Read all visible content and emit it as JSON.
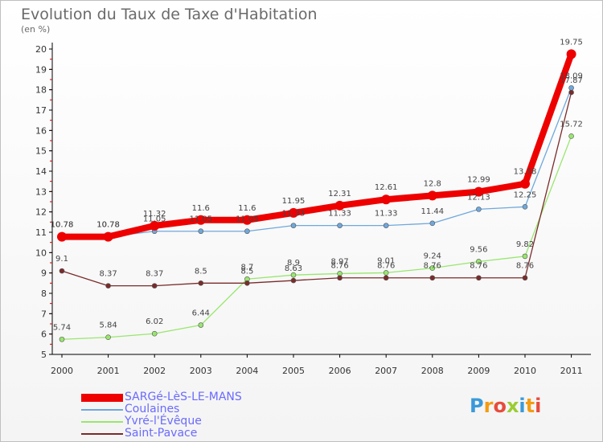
{
  "chart_data": {
    "type": "line",
    "title": "Evolution du Taux de Taxe d'Habitation",
    "subtitle": "(en %)",
    "xlabel": "",
    "ylabel": "",
    "categories": [
      "2000",
      "2001",
      "2002",
      "2003",
      "2004",
      "2005",
      "2006",
      "2007",
      "2008",
      "2009",
      "2010",
      "2011"
    ],
    "ylim": [
      5,
      20
    ],
    "yticks": [
      5,
      6,
      7,
      8,
      9,
      10,
      11,
      12,
      13,
      14,
      15,
      16,
      17,
      18,
      19,
      20
    ],
    "grid": false,
    "legend_position": "bottom-left",
    "series": [
      {
        "name": "SARGé-LèS-LE-MANS",
        "color": "#ee0000",
        "values": [
          10.78,
          10.78,
          11.32,
          11.6,
          11.6,
          11.95,
          12.31,
          12.61,
          12.8,
          12.99,
          13.38,
          19.75
        ],
        "labels": [
          "10.78",
          "10.78",
          "11.32",
          "11.6",
          "11.6",
          "11.95",
          "12.31",
          "12.61",
          "12.8",
          "12.99",
          "13.38",
          "19.75"
        ]
      },
      {
        "name": "Coulaines",
        "color": "#6fa8dc",
        "values": [
          10.78,
          10.78,
          11.05,
          11.05,
          11.05,
          11.33,
          11.33,
          11.33,
          11.44,
          12.13,
          12.25,
          18.09
        ],
        "labels": [
          "10.78",
          "10.78",
          "11.05",
          "11.05",
          "11.05",
          "11.33",
          "11.33",
          "11.33",
          "11.44",
          "12.13",
          "12.25",
          "18.09"
        ]
      },
      {
        "name": "Yvré-l'Évêque",
        "color": "#99e66e",
        "values": [
          5.74,
          5.84,
          6.02,
          6.44,
          8.7,
          8.9,
          8.97,
          9.01,
          9.24,
          9.56,
          9.82,
          15.72
        ],
        "labels": [
          "5.74",
          "5.84",
          "6.02",
          "6.44",
          "8.7",
          "8.9",
          "8.97",
          "9.01",
          "9.24",
          "9.56",
          "9.82",
          "15.72"
        ]
      },
      {
        "name": "Saint-Pavace",
        "color": "#7a2b2b",
        "values": [
          9.1,
          8.37,
          8.37,
          8.5,
          8.5,
          8.63,
          8.76,
          8.76,
          8.76,
          8.76,
          8.76,
          17.87
        ],
        "labels": [
          "9.1",
          "8.37",
          "8.37",
          "8.5",
          "8.5",
          "8.63",
          "8.76",
          "8.76",
          "8.76",
          "8.76",
          "8.76",
          "17.87"
        ]
      }
    ]
  },
  "logo": {
    "letters": [
      "P",
      "r",
      "o",
      "x",
      "i",
      "t",
      "i"
    ]
  }
}
